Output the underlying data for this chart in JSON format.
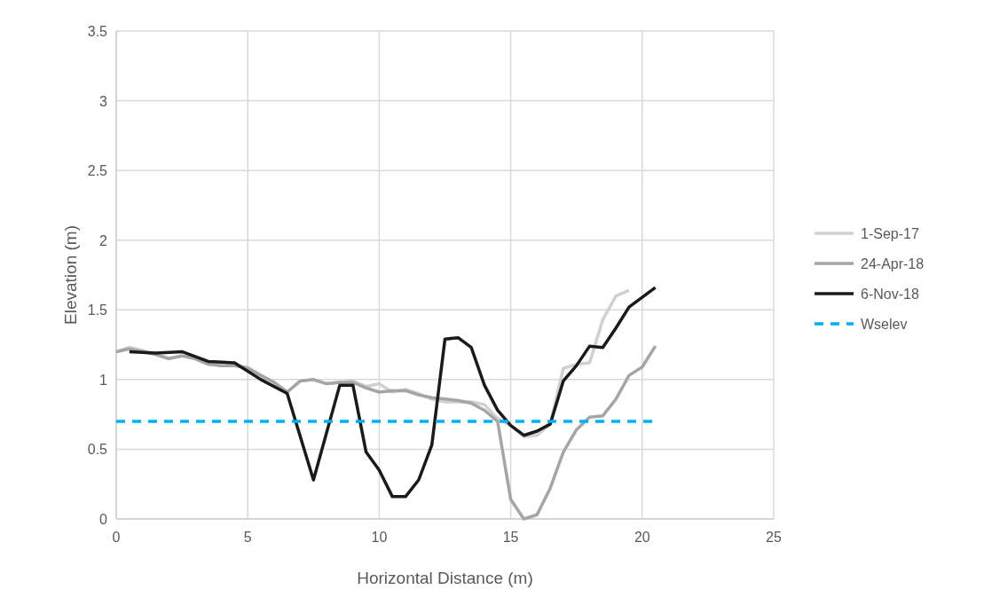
{
  "chart_data": {
    "type": "line",
    "xlabel": "Horizontal Distance (m)",
    "ylabel": "Elevation (m)",
    "xlim": [
      0,
      25
    ],
    "xticks": [
      0,
      5,
      10,
      15,
      20,
      25
    ],
    "ylim": [
      0,
      3.5
    ],
    "yticks": [
      0,
      0.5,
      1,
      1.5,
      2,
      2.5,
      3,
      3.5
    ],
    "grid": true,
    "legend": "right",
    "marker": "none",
    "series": [
      {
        "name": "1-Sep-17",
        "color": "#d0d0d0",
        "line_style": "solid",
        "x": [
          0,
          0.5,
          1,
          1.5,
          2,
          2.5,
          3,
          3.5,
          4,
          4.5,
          5,
          5.5,
          6,
          6.5,
          7,
          7.5,
          8,
          8.5,
          9,
          9.5,
          10,
          10.5,
          11,
          11.5,
          12,
          12.5,
          13,
          13.5,
          14,
          14.5,
          15,
          15.5,
          16,
          16.5,
          17,
          17.5,
          18,
          18.5,
          19,
          19.5
        ],
        "values": [
          1.2,
          1.23,
          1.21,
          1.18,
          1.15,
          1.17,
          1.15,
          1.11,
          1.1,
          1.1,
          1.09,
          1.03,
          0.98,
          0.91,
          0.99,
          1.0,
          0.97,
          0.98,
          0.99,
          0.95,
          0.97,
          0.91,
          0.93,
          0.9,
          0.86,
          0.84,
          0.84,
          0.84,
          0.82,
          0.72,
          0.67,
          0.59,
          0.6,
          0.68,
          1.08,
          1.11,
          1.12,
          1.43,
          1.6,
          1.64
        ]
      },
      {
        "name": "24-Apr-18",
        "color": "#a5a5a5",
        "line_style": "solid",
        "x": [
          0,
          0.5,
          1,
          1.5,
          2,
          2.5,
          3,
          3.5,
          4,
          4.5,
          5,
          5.5,
          6,
          6.5,
          7,
          7.5,
          8,
          8.5,
          9,
          9.5,
          10,
          10.5,
          11,
          11.5,
          12,
          12.5,
          13,
          13.5,
          14,
          14.5,
          15,
          15.5,
          16,
          16.5,
          17,
          17.5,
          18,
          18.5,
          19,
          19.5,
          20,
          20.5
        ],
        "values": [
          1.2,
          1.22,
          1.2,
          1.18,
          1.15,
          1.17,
          1.15,
          1.11,
          1.1,
          1.1,
          1.08,
          1.03,
          0.98,
          0.91,
          0.99,
          1.0,
          0.97,
          0.98,
          0.98,
          0.94,
          0.91,
          0.92,
          0.92,
          0.89,
          0.87,
          0.86,
          0.85,
          0.83,
          0.78,
          0.7,
          0.14,
          0.0,
          0.03,
          0.22,
          0.48,
          0.64,
          0.73,
          0.74,
          0.86,
          1.03,
          1.09,
          1.24
        ]
      },
      {
        "name": "6-Nov-18",
        "color": "#1a1a1a",
        "line_style": "solid",
        "x": [
          0.5,
          1.5,
          2.5,
          3.5,
          4.5,
          5.5,
          6.5,
          7.5,
          8.5,
          9,
          9.5,
          10,
          10.5,
          11,
          11.5,
          12,
          12.5,
          13,
          13.5,
          14,
          14.5,
          15,
          15.5,
          16,
          16.5,
          17,
          17.5,
          18,
          18.5,
          19,
          19.5,
          20,
          20.5
        ],
        "values": [
          1.2,
          1.19,
          1.2,
          1.13,
          1.12,
          1.0,
          0.9,
          0.28,
          0.96,
          0.96,
          0.48,
          0.35,
          0.16,
          0.16,
          0.28,
          0.53,
          1.29,
          1.3,
          1.23,
          0.96,
          0.78,
          0.67,
          0.6,
          0.63,
          0.68,
          0.99,
          1.1,
          1.24,
          1.23,
          1.37,
          1.52,
          1.59,
          1.66
        ]
      },
      {
        "name": "Wselev",
        "color": "#00b0f0",
        "line_style": "dashed",
        "x": [
          0,
          20.5
        ],
        "values": [
          0.7,
          0.7
        ]
      }
    ]
  }
}
